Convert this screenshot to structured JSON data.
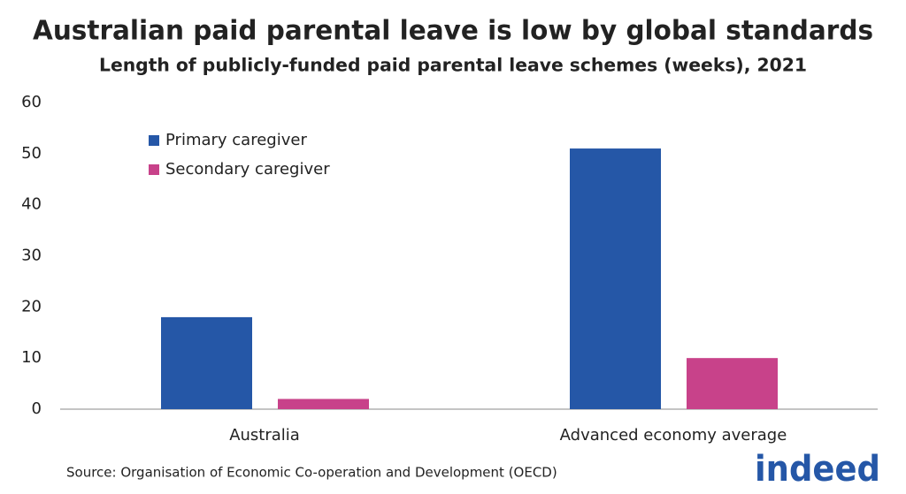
{
  "chart_data": {
    "type": "bar",
    "title": "Australian paid parental leave is low by global standards",
    "subtitle": "Length of publicly-funded paid parental leave schemes (weeks), 2021",
    "categories": [
      "Australia",
      "Advanced economy average"
    ],
    "series": [
      {
        "name": "Primary caregiver",
        "color": "#2557a7",
        "values": [
          18,
          51
        ]
      },
      {
        "name": "Secondary caregiver",
        "color": "#c8428a",
        "values": [
          2,
          10
        ]
      }
    ],
    "ylim": [
      0,
      60
    ],
    "yticks": [
      0,
      10,
      20,
      30,
      40,
      50,
      60
    ],
    "grid": false,
    "legend": "top-left",
    "source": "Source: Organisation of Economic Co-operation and Development (OECD)",
    "logo": "indeed"
  }
}
